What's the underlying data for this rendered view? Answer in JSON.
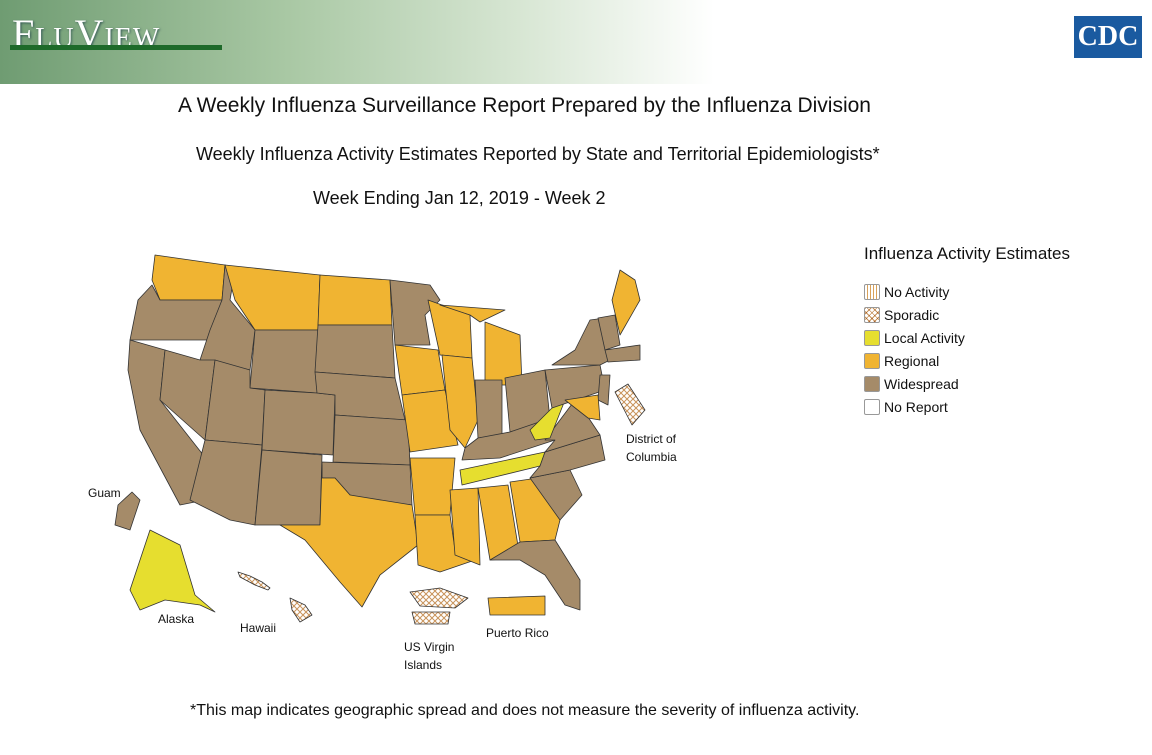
{
  "header": {
    "brand": "FluView",
    "logo": "CDC"
  },
  "report_title": "A Weekly Influenza Surveillance Report Prepared by the Influenza Division",
  "subtitle": "Weekly Influenza Activity Estimates Reported by State and Territorial Epidemiologists*",
  "week": "Week Ending Jan 12, 2019 - Week 2",
  "legend": {
    "title": "Influenza Activity Estimates",
    "items": [
      {
        "label": "No Activity",
        "color": "#d9a25a"
      },
      {
        "label": "Sporadic",
        "color": "#c8935a"
      },
      {
        "label": "Local Activity",
        "color": "#e6de2f"
      },
      {
        "label": "Regional",
        "color": "#f0b432"
      },
      {
        "label": "Widespread",
        "color": "#a58b69"
      },
      {
        "label": "No Report",
        "color": "#ffffff"
      }
    ]
  },
  "map_labels": {
    "dc": "District of Columbia",
    "guam": "Guam",
    "alaska": "Alaska",
    "hawaii": "Hawaii",
    "usvi": "US Virgin Islands",
    "puerto_rico": "Puerto Rico"
  },
  "footnote": "*This map indicates geographic spread and does not measure the severity of influenza activity."
}
